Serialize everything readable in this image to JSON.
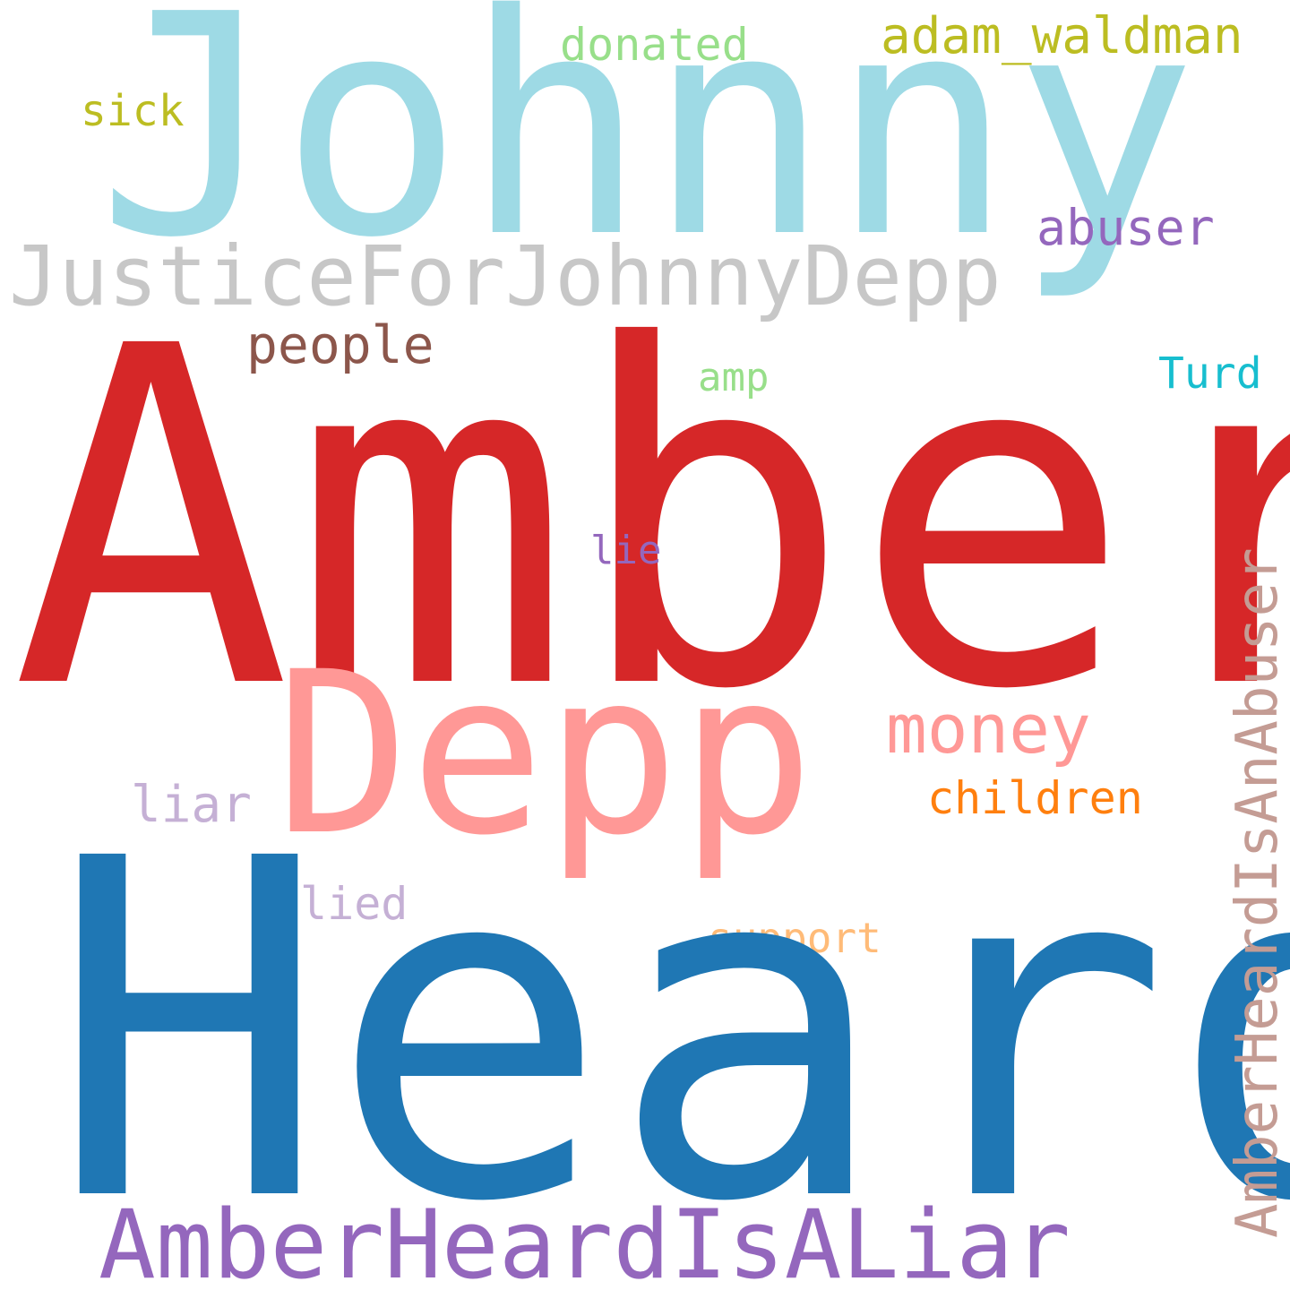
{
  "words": {
    "johnny": {
      "text": "Johnny",
      "color": "#9edae5"
    },
    "justice": {
      "text": "JusticeForJohnnyDepp",
      "color": "#c7c7c7"
    },
    "donated": {
      "text": "donated",
      "color": "#98df8a"
    },
    "adam_waldman": {
      "text": "adam_waldman",
      "color": "#bcbd22"
    },
    "sick": {
      "text": "sick",
      "color": "#bcbd22"
    },
    "abuser": {
      "text": "abuser",
      "color": "#9467bd"
    },
    "people": {
      "text": "people",
      "color": "#8c564b"
    },
    "amp": {
      "text": "amp",
      "color": "#98df8a"
    },
    "turd": {
      "text": "Turd",
      "color": "#17becf"
    },
    "amber": {
      "text": "Amber",
      "color": "#d62728"
    },
    "lie": {
      "text": "lie",
      "color": "#9467bd"
    },
    "depp": {
      "text": "Depp",
      "color": "#ff9896"
    },
    "money": {
      "text": "money",
      "color": "#ff9896"
    },
    "children": {
      "text": "children",
      "color": "#ff7f0e"
    },
    "liar": {
      "text": "liar",
      "color": "#c5b0d5"
    },
    "lied": {
      "text": "lied",
      "color": "#c5b0d5"
    },
    "support": {
      "text": "support",
      "color": "#ffbb78"
    },
    "heard": {
      "text": "Heard",
      "color": "#1f77b4"
    },
    "amber_heard_is_a_liar": {
      "text": "AmberHeardIsALiar",
      "color": "#9467bd"
    },
    "amber_heard_is_an_abuser": {
      "text": "AmberHeardIsAnAbuser",
      "color": "#c49c94"
    }
  }
}
